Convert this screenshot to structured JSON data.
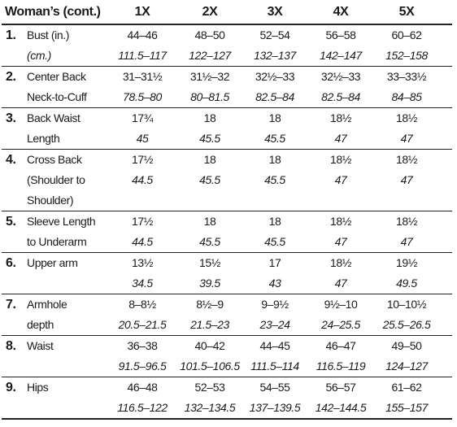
{
  "table": {
    "header": [
      "Woman’s (cont.)",
      "1X",
      "2X",
      "3X",
      "4X",
      "5X"
    ],
    "rows": [
      {
        "number": "1.",
        "label": [
          "Bust (in.)",
          "(cm.)"
        ],
        "in": [
          "44–46",
          "48–50",
          "52–54",
          "56–58",
          "60–62"
        ],
        "cm": [
          "111.5–117",
          "122–127",
          "132–137",
          "142–147",
          "152–158"
        ]
      },
      {
        "number": "2.",
        "label": [
          "Center Back",
          "Neck-to-Cuff"
        ],
        "in": [
          "31–31½",
          "31½–32",
          "32½–33",
          "32½–33",
          "33–33½"
        ],
        "cm": [
          "78.5–80",
          "80–81.5",
          "82.5–84",
          "82.5–84",
          "84–85"
        ]
      },
      {
        "number": "3.",
        "label": [
          "Back Waist",
          "Length"
        ],
        "in": [
          "17¾",
          "18",
          "18",
          "18½",
          "18½"
        ],
        "cm": [
          "45",
          "45.5",
          "45.5",
          "47",
          "47"
        ]
      },
      {
        "number": "4.",
        "label": [
          "Cross Back",
          "(Shoulder to",
          "Shoulder)"
        ],
        "in": [
          "17½",
          "18",
          "18",
          "18½",
          "18½"
        ],
        "cm": [
          "44.5",
          "45.5",
          "45.5",
          "47",
          "47"
        ]
      },
      {
        "number": "5.",
        "label": [
          "Sleeve Length",
          "to Underarm"
        ],
        "in": [
          "17½",
          "18",
          "18",
          "18½",
          "18½"
        ],
        "cm": [
          "44.5",
          "45.5",
          "45.5",
          "47",
          "47"
        ]
      },
      {
        "number": "6.",
        "label": [
          "Upper arm"
        ],
        "in": [
          "13½",
          "15½",
          "17",
          "18½",
          "19½"
        ],
        "cm": [
          "34.5",
          "39.5",
          "43",
          "47",
          "49.5"
        ]
      },
      {
        "number": "7.",
        "label": [
          "Armhole",
          "depth"
        ],
        "in": [
          "8–8½",
          "8½–9",
          "9–9½",
          "9½–10",
          "10–10½"
        ],
        "cm": [
          "20.5–21.5",
          "21.5–23",
          "23–24",
          "24–25.5",
          "25.5–26.5"
        ]
      },
      {
        "number": "8.",
        "label": [
          "Waist"
        ],
        "in": [
          "36–38",
          "40–42",
          "44–45",
          "46–47",
          "49–50"
        ],
        "cm": [
          "91.5–96.5",
          "101.5–106.5",
          "111.5–114",
          "116.5–119",
          "124–127"
        ]
      },
      {
        "number": "9.",
        "label": [
          "Hips"
        ],
        "in": [
          "46–48",
          "52–53",
          "54–55",
          "56–57",
          "61–62"
        ],
        "cm": [
          "116.5–122",
          "132–134.5",
          "137–139.5",
          "142–144.5",
          "155–157"
        ]
      }
    ]
  }
}
